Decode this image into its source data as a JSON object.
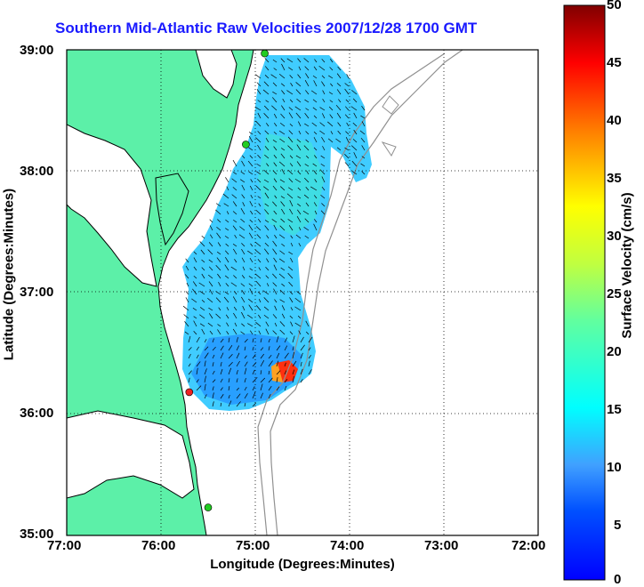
{
  "title": "Southern Mid-Atlantic Raw Velocities 2007/12/28 1700 GMT",
  "axes": {
    "xlabel": "Longitude (Degrees:Minutes)",
    "ylabel": "Latitude (Degrees:Minutes)",
    "xticks": [
      "77:00",
      "76:00",
      "75:00",
      "74:00",
      "73:00",
      "72:00"
    ],
    "yticks": [
      "39:00",
      "38:00",
      "37:00",
      "36:00",
      "35:00"
    ],
    "xlim": [
      -77,
      -72
    ],
    "ylim": [
      35,
      39
    ]
  },
  "colorbar": {
    "label": "Surface Velocity (cm/s)",
    "ticks": [
      "50",
      "45",
      "40",
      "35",
      "30",
      "25",
      "20",
      "15",
      "10",
      "5",
      "0"
    ],
    "range": [
      0,
      50
    ],
    "colormap": "jet"
  },
  "colors": {
    "title": "#1a1aff",
    "land": "#5cf0a8",
    "coast": "#000000",
    "bathymetry": "#909090",
    "grid": "#000000"
  },
  "markers": [
    {
      "name": "site-north",
      "lon": -74.9,
      "lat": 38.97,
      "color": "#22cc22"
    },
    {
      "name": "site-middle",
      "lon": -75.1,
      "lat": 38.22,
      "color": "#22cc22"
    },
    {
      "name": "site-red",
      "lon": -75.7,
      "lat": 36.18,
      "color": "#ee2222"
    },
    {
      "name": "site-south",
      "lon": -75.5,
      "lat": 35.23,
      "color": "#22cc22"
    }
  ],
  "hotspot": {
    "lon": -74.6,
    "lat": 36.35,
    "value": 45
  }
}
